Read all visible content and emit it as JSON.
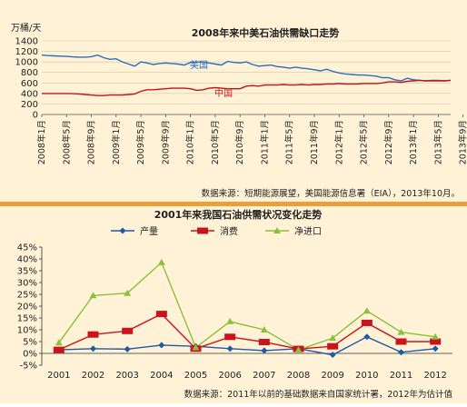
{
  "chart_data": [
    {
      "type": "line",
      "title": "2008年来中美石油供需缺口走势",
      "ylabel": "万桶/天",
      "ylim": [
        0,
        1400
      ],
      "yticks": [
        "1400",
        "1200",
        "1000",
        "800",
        "600",
        "400",
        "200",
        "0"
      ],
      "x_ticks": [
        "2008年1月",
        "2008年5月",
        "2008年9月",
        "2009年1月",
        "2009年5月",
        "2009年9月",
        "2010年1月",
        "2010年5月",
        "2010年9月",
        "2011年1月",
        "2011年5月",
        "2011年9月",
        "2012年1月",
        "2012年5月",
        "2012年9月",
        "2013年1月",
        "2013年5月",
        "2013年9月"
      ],
      "series": [
        {
          "name": "美国",
          "color": "#2a6ec0",
          "values": [
            1130,
            1120,
            1115,
            1110,
            1105,
            1095,
            1090,
            1090,
            1100,
            1130,
            1080,
            1050,
            1060,
            1000,
            960,
            920,
            1000,
            980,
            950,
            970,
            980,
            970,
            960,
            940,
            990,
            1000,
            990,
            980,
            960,
            940,
            1010,
            990,
            980,
            1000,
            950,
            920,
            930,
            940,
            910,
            900,
            880,
            900,
            880,
            870,
            850,
            830,
            860,
            820,
            790,
            770,
            760,
            750,
            750,
            740,
            730,
            700,
            700,
            660,
            640,
            690,
            660,
            650,
            640,
            650,
            650,
            640,
            650
          ]
        },
        {
          "name": "中国",
          "color": "#c0141a",
          "values": [
            400,
            400,
            400,
            400,
            400,
            395,
            390,
            380,
            370,
            360,
            360,
            370,
            370,
            370,
            380,
            390,
            440,
            470,
            470,
            480,
            490,
            500,
            500,
            500,
            490,
            460,
            470,
            500,
            510,
            500,
            490,
            490,
            490,
            540,
            550,
            540,
            560,
            560,
            560,
            570,
            560,
            560,
            570,
            560,
            570,
            570,
            580,
            580,
            590,
            580,
            580,
            580,
            590,
            590,
            590,
            600,
            620,
            620,
            610,
            630,
            640,
            650,
            640,
            640,
            640,
            640,
            650
          ]
        }
      ],
      "annotations": [
        {
          "text": "美国"
        },
        {
          "text": "中国"
        }
      ],
      "source_note": "数据来源：短期能源展望，美国能源信息署（EIA），2013年10月。"
    },
    {
      "type": "line",
      "title": "2001年来我国石油供需状况变化走势",
      "ylim": [
        -5,
        45
      ],
      "yticks": [
        "45%",
        "40%",
        "35%",
        "30%",
        "25%",
        "20%",
        "15%",
        "10%",
        "5%",
        "0%",
        "-5%"
      ],
      "categories": [
        "2001",
        "2002",
        "2003",
        "2004",
        "2005",
        "2006",
        "2007",
        "2008",
        "2009",
        "2010",
        "2011",
        "2012"
      ],
      "series": [
        {
          "name": "产量",
          "color": "#1f5aa8",
          "marker": "diamond",
          "values": [
            1.5,
            2.0,
            1.8,
            3.5,
            3.0,
            2.0,
            1.2,
            2.0,
            -0.6,
            7.0,
            0.5,
            2.0
          ]
        },
        {
          "name": "消费",
          "color": "#c8141a",
          "marker": "square",
          "values": [
            1.5,
            8.0,
            9.5,
            16.7,
            2.0,
            7.0,
            4.8,
            1.9,
            3.0,
            12.9,
            5.0,
            5.0
          ]
        },
        {
          "name": "净进口",
          "color": "#8cbf3a",
          "marker": "triangle",
          "values": [
            4.5,
            24.5,
            25.5,
            38.5,
            2.5,
            13.5,
            10.0,
            1.5,
            6.5,
            18.0,
            9.0,
            7.0
          ]
        }
      ],
      "legend": "top-center",
      "source_note": "数据来源：2011年以前的基础数据来自国家统计署，2012年为估计值"
    }
  ]
}
